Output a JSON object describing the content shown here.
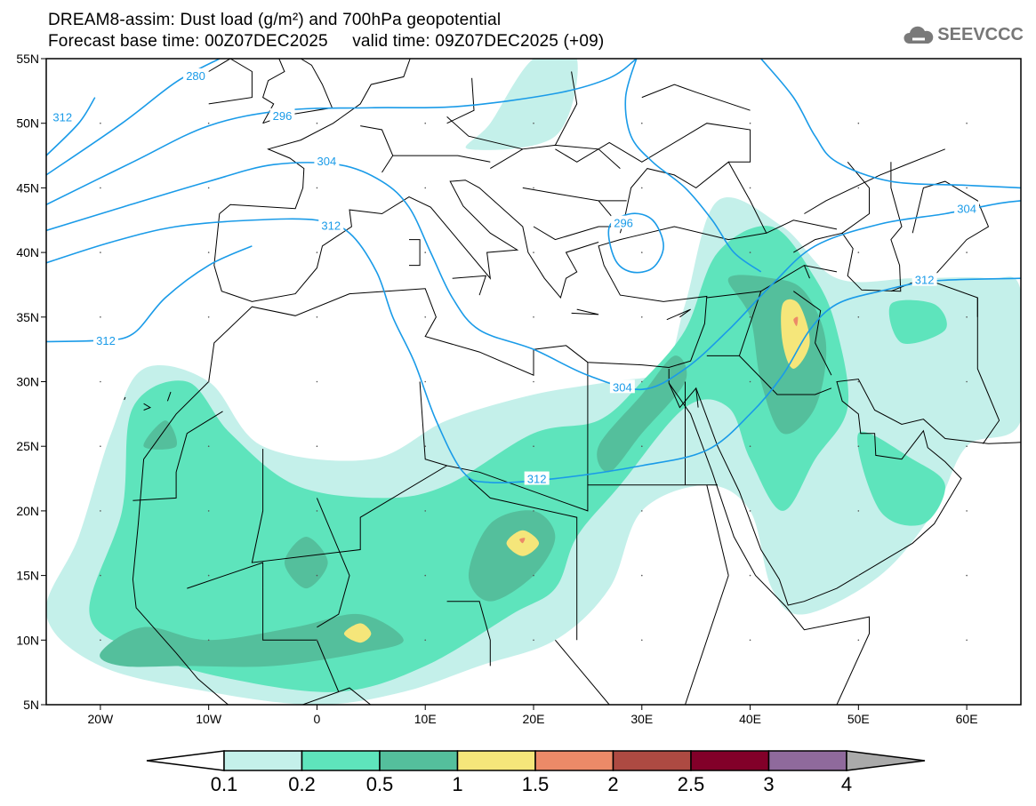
{
  "header": {
    "title": "DREAM8-assim: Dust load (g/m²) and 700hPa geopotential",
    "subtitle_base": "Forecast base time: 00Z07DEC2025",
    "subtitle_valid": "valid time: 09Z07DEC2025 (+09)",
    "logo": "SEEVCCC"
  },
  "axes": {
    "lat_labels": [
      "55N",
      "50N",
      "45N",
      "40N",
      "35N",
      "30N",
      "25N",
      "20N",
      "15N",
      "10N",
      "5N"
    ],
    "lat_values": [
      55,
      50,
      45,
      40,
      35,
      30,
      25,
      20,
      15,
      10,
      5
    ],
    "lon_labels": [
      "20W",
      "10W",
      "0",
      "10E",
      "20E",
      "30E",
      "40E",
      "50E",
      "60E"
    ],
    "lon_values": [
      -20,
      -10,
      0,
      10,
      20,
      30,
      40,
      50,
      60
    ]
  },
  "contour_labels": [
    {
      "text": "280",
      "lon": -11.2,
      "lat": 53.7
    },
    {
      "text": "312",
      "lon": -23.5,
      "lat": 50.5
    },
    {
      "text": "296",
      "lon": -3.2,
      "lat": 50.6
    },
    {
      "text": "304",
      "lon": 0.9,
      "lat": 47.1
    },
    {
      "text": "312",
      "lon": 1.3,
      "lat": 42.1
    },
    {
      "text": "312",
      "lon": -19.5,
      "lat": 33.2
    },
    {
      "text": "296",
      "lon": 28.3,
      "lat": 42.3
    },
    {
      "text": "304",
      "lon": 28.2,
      "lat": 29.6
    },
    {
      "text": "312",
      "lon": 20.3,
      "lat": 22.5
    },
    {
      "text": "312",
      "lon": 56.1,
      "lat": 37.9
    },
    {
      "text": "304",
      "lon": 60.0,
      "lat": 43.4
    }
  ],
  "colorbar": {
    "labels": [
      "0.1",
      "0.2",
      "0.5",
      "1",
      "1.5",
      "2",
      "2.5",
      "3",
      "4"
    ],
    "colors": [
      "#c4f0ea",
      "#5ee4bc",
      "#54bf9c",
      "#f5e67a",
      "#ec8a68",
      "#ad4a42",
      "#820029",
      "#8f6a9c"
    ],
    "over_color": "#aaaaaa"
  }
}
